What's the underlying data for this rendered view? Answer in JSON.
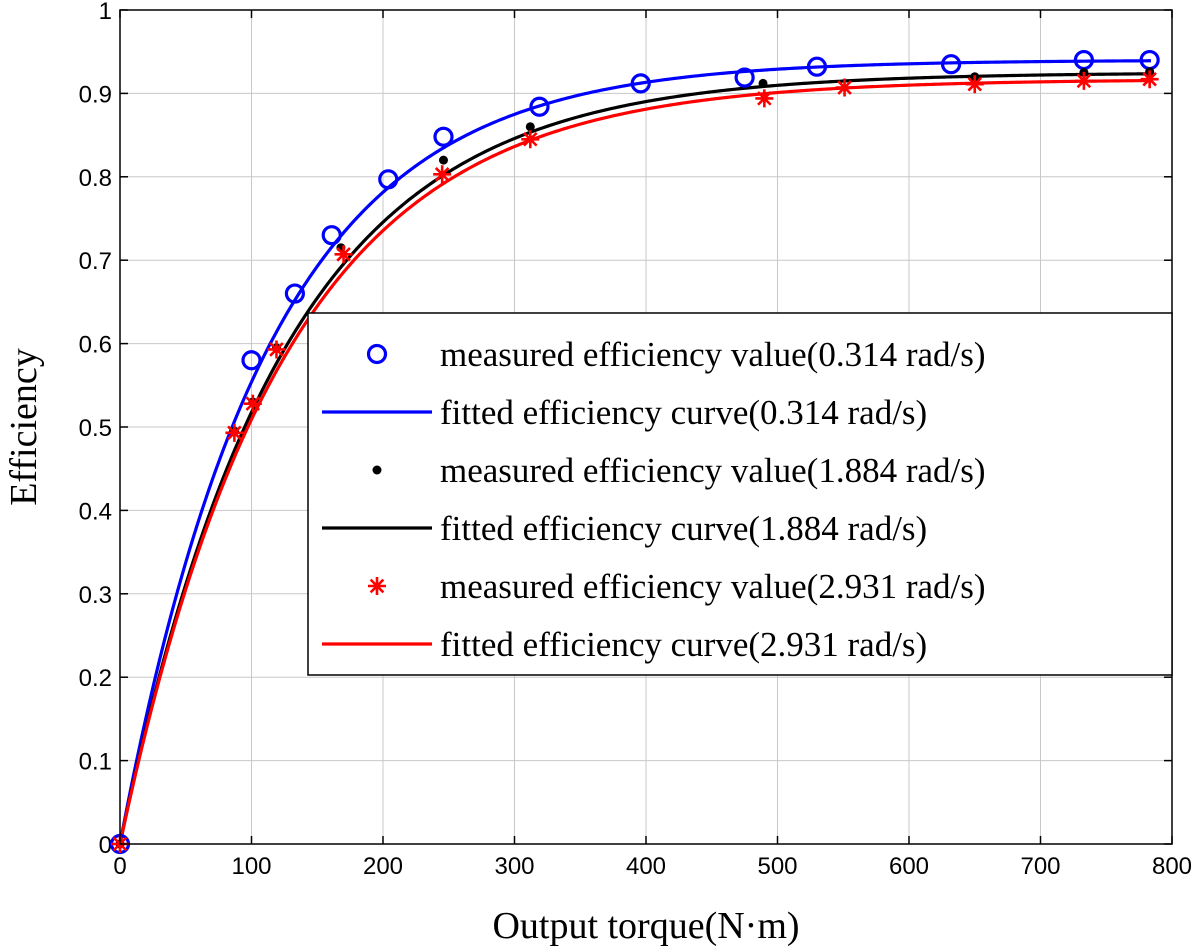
{
  "chart_data": {
    "type": "line",
    "title": "",
    "xlabel": "Output torque(N·m)",
    "ylabel": "Efficiency",
    "xlim": [
      0,
      800
    ],
    "ylim": [
      0,
      1
    ],
    "xticks": [
      0,
      100,
      200,
      300,
      400,
      500,
      600,
      700,
      800
    ],
    "yticks": [
      0,
      0.1,
      0.2,
      0.3,
      0.4,
      0.5,
      0.6,
      0.7,
      0.8,
      0.9,
      1
    ],
    "xtick_labels": [
      "0",
      "100",
      "200",
      "300",
      "400",
      "500",
      "600",
      "700",
      "800"
    ],
    "ytick_labels": [
      "0",
      "0.1",
      "0.2",
      "0.3",
      "0.4",
      "0.5",
      "0.6",
      "0.7",
      "0.8",
      "0.9",
      "1"
    ],
    "grid": true,
    "legend_position": "right",
    "series": [
      {
        "name": "measured efficiency value(0.314 rad/s)",
        "kind": "scatter",
        "marker": "circle",
        "color": "#0000ff",
        "x": [
          0,
          100,
          133,
          161,
          204,
          246,
          319,
          396,
          475,
          530,
          632,
          733,
          783
        ],
        "y": [
          0,
          0.58,
          0.66,
          0.73,
          0.797,
          0.848,
          0.884,
          0.912,
          0.919,
          0.932,
          0.935,
          0.94,
          0.94
        ]
      },
      {
        "name": "fitted efficiency curve(0.314 rad/s)",
        "kind": "line",
        "color": "#0000ff",
        "model": {
          "a": 0.94,
          "k": 0.0089
        },
        "x_range": [
          0,
          785
        ]
      },
      {
        "name": "measured efficiency value(1.884 rad/s)",
        "kind": "scatter",
        "marker": "dot",
        "color": "#000000",
        "x": [
          0,
          87,
          101,
          119,
          168,
          246,
          312,
          489,
          650,
          733,
          783
        ],
        "y": [
          0,
          0.495,
          0.53,
          0.595,
          0.715,
          0.82,
          0.86,
          0.912,
          0.92,
          0.925,
          0.926
        ]
      },
      {
        "name": "fitted efficiency curve(1.884 rad/s)",
        "kind": "line",
        "color": "#000000",
        "model": {
          "a": 0.925,
          "k": 0.0082
        },
        "x_range": [
          0,
          785
        ]
      },
      {
        "name": "measured efficiency value(2.931 rad/s)",
        "kind": "scatter",
        "marker": "asterisk",
        "color": "#ff0000",
        "x": [
          0,
          87,
          101,
          119,
          170,
          245,
          312,
          490,
          551,
          650,
          733,
          783
        ],
        "y": [
          0,
          0.493,
          0.528,
          0.593,
          0.707,
          0.803,
          0.845,
          0.894,
          0.907,
          0.911,
          0.915,
          0.917
        ]
      },
      {
        "name": "fitted efficiency curve(2.931 rad/s)",
        "kind": "line",
        "color": "#ff0000",
        "model": {
          "a": 0.917,
          "k": 0.0081
        },
        "x_range": [
          0,
          785
        ]
      }
    ]
  }
}
